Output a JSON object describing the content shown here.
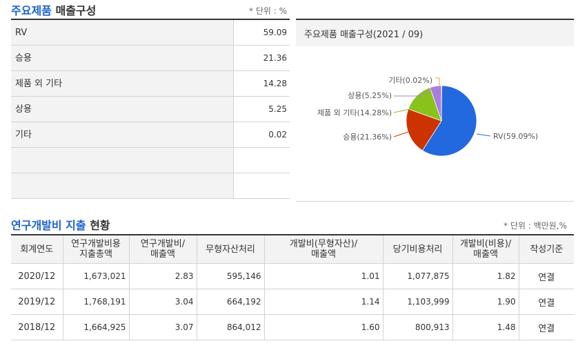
{
  "product_section": {
    "title_part1": "주요제품",
    "title_part2": "매출구성",
    "unit": "* 단위 : %",
    "rows": [
      {
        "name": "RV",
        "value": "59.09"
      },
      {
        "name": "승용",
        "value": "21.36"
      },
      {
        "name": "제품 외 기타",
        "value": "14.28"
      },
      {
        "name": "상용",
        "value": "5.25"
      },
      {
        "name": "기타",
        "value": "0.02"
      },
      {
        "name": "",
        "value": ""
      },
      {
        "name": "",
        "value": ""
      }
    ]
  },
  "pie_panel": {
    "title": "주요제품 매출구성(2021 / 09)"
  },
  "chart_data": {
    "type": "pie",
    "title": "주요제품 매출구성(2021 / 09)",
    "slices": [
      {
        "label": "RV(59.09%)",
        "value": 59.09,
        "color": "#2268de"
      },
      {
        "label": "승용(21.36%)",
        "value": 21.36,
        "color": "#cc3300"
      },
      {
        "label": "제품 외 기타(14.28%)",
        "value": 14.28,
        "color": "#88c21a"
      },
      {
        "label": "상용(5.25%)",
        "value": 5.25,
        "color": "#a97de0"
      },
      {
        "label": "기타(0.02%)",
        "value": 0.02,
        "color": "#f0a030"
      }
    ],
    "legend": "none"
  },
  "rd_section": {
    "title_part1": "연구개발비 지출",
    "title_part2": "현황",
    "unit": "* 단위 : 백만원,%",
    "headers": [
      [
        "회계연도"
      ],
      [
        "연구개발비용",
        "지출총액"
      ],
      [
        "연구개발비/",
        "매출액"
      ],
      [
        "무형자산처리"
      ],
      [
        "개발비(무형자산)/",
        "매출액"
      ],
      [
        "당기비용처리"
      ],
      [
        "개발비(비용)/",
        "매출액"
      ],
      [
        "작성기준"
      ]
    ],
    "rows": [
      [
        "2020/12",
        "1,673,021",
        "2.83",
        "595,146",
        "1.01",
        "1,077,875",
        "1.82",
        "연결"
      ],
      [
        "2019/12",
        "1,768,191",
        "3.04",
        "664,192",
        "1.14",
        "1,103,999",
        "1.90",
        "연결"
      ],
      [
        "2018/12",
        "1,664,925",
        "3.07",
        "864,012",
        "1.60",
        "800,913",
        "1.48",
        "연결"
      ]
    ]
  }
}
